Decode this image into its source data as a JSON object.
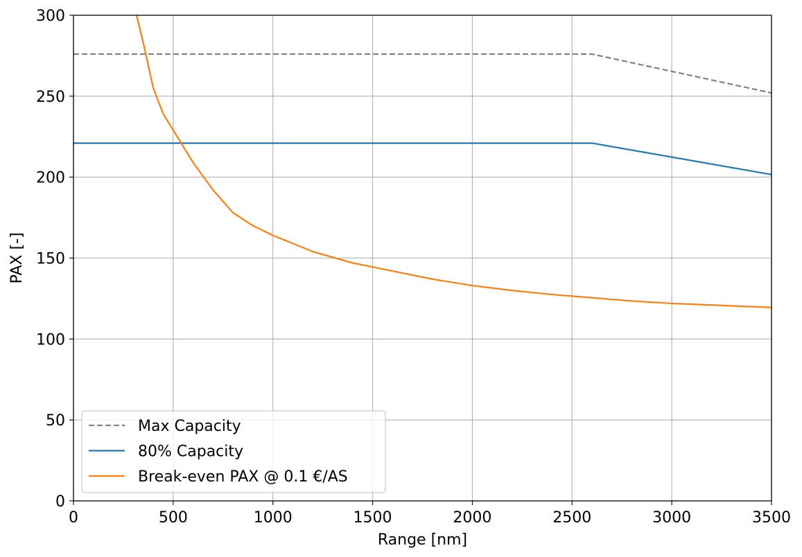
{
  "chart_data": {
    "type": "line",
    "xlabel": "Range [nm]",
    "ylabel": "PAX [-]",
    "xlim": [
      0,
      3500
    ],
    "ylim": [
      0,
      300
    ],
    "xticks": [
      0,
      500,
      1000,
      1500,
      2000,
      2500,
      3000,
      3500
    ],
    "yticks": [
      0,
      50,
      100,
      150,
      200,
      250,
      300
    ],
    "grid": true,
    "legend_position": "lower-left",
    "series": [
      {
        "name": "Max Capacity",
        "color": "#808080",
        "style": "dashed",
        "x": [
          0,
          2600,
          3500
        ],
        "y": [
          276,
          276,
          252
        ]
      },
      {
        "name": "80% Capacity",
        "color": "#1f77b4",
        "style": "solid",
        "x": [
          0,
          2600,
          3500
        ],
        "y": [
          221,
          221,
          201.6
        ]
      },
      {
        "name": "Break-even PAX @ 0.1 €/AS",
        "color": "#ff7f0e",
        "style": "solid",
        "x": [
          316,
          350,
          400,
          450,
          500,
          550,
          600,
          700,
          800,
          900,
          1000,
          1200,
          1400,
          1600,
          1800,
          2000,
          2200,
          2400,
          2600,
          2800,
          3000,
          3200,
          3500
        ],
        "y": [
          300,
          283,
          255,
          239,
          229,
          219,
          209,
          192,
          178,
          170,
          164,
          154,
          147,
          142,
          137,
          133,
          130,
          127.5,
          125.5,
          123.5,
          122,
          121,
          119.5
        ]
      }
    ]
  }
}
